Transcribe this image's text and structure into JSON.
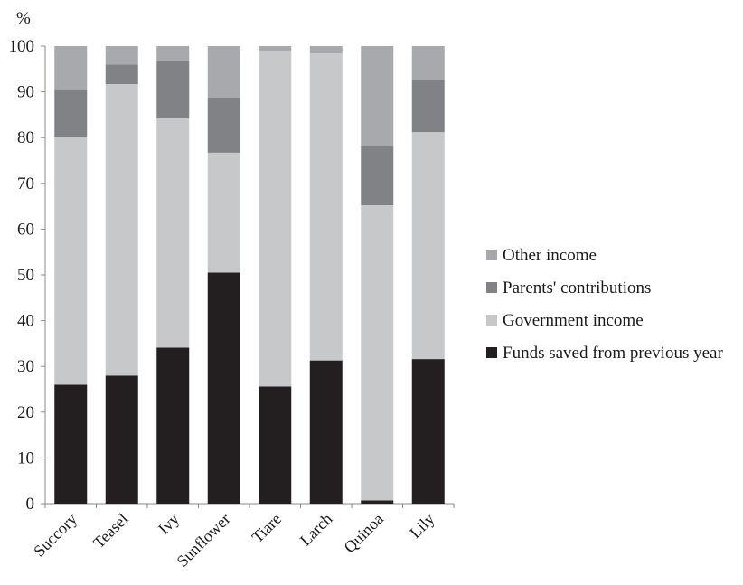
{
  "chart_data": {
    "type": "bar",
    "stacked": true,
    "ylabel": "%",
    "ylim": [
      0,
      100
    ],
    "yticks": [
      0,
      10,
      20,
      30,
      40,
      50,
      60,
      70,
      80,
      90,
      100
    ],
    "grid": false,
    "legend_position": "right",
    "categories": [
      "Succory",
      "Teasel",
      "Ivy",
      "Sunflower",
      "Tiare",
      "Larch",
      "Quinoa",
      "Lily"
    ],
    "series": [
      {
        "name": "Funds saved from previous year",
        "color": "#231f20",
        "values": [
          26.0,
          28.0,
          34.1,
          50.5,
          25.6,
          31.3,
          0.7,
          31.6
        ]
      },
      {
        "name": "Government income",
        "color": "#c7c8ca",
        "values": [
          54.2,
          63.7,
          50.1,
          26.2,
          73.4,
          67.1,
          64.5,
          49.6
        ]
      },
      {
        "name": "Parents' contributions",
        "color": "#808285",
        "values": [
          10.3,
          4.3,
          12.5,
          12.1,
          0.0,
          0.0,
          13.0,
          11.4
        ]
      },
      {
        "name": "Other income",
        "color": "#a7a9ac",
        "values": [
          9.5,
          4.0,
          3.3,
          11.2,
          1.0,
          1.6,
          21.8,
          7.4
        ]
      }
    ],
    "legend_order": [
      "Other income",
      "Parents' contributions",
      "Government income",
      "Funds saved from previous year"
    ]
  }
}
